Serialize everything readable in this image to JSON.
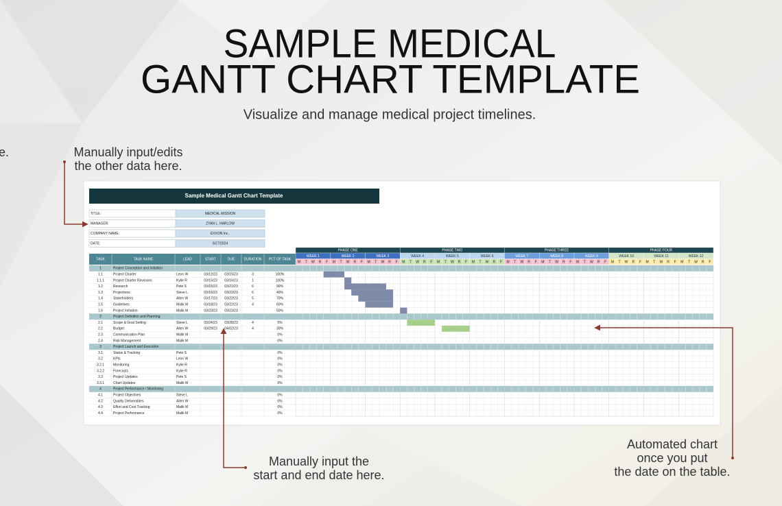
{
  "header": {
    "title_lines": [
      "SAMPLE MEDICAL",
      "GANTT CHART TEMPLATE"
    ],
    "subtitle": "Visualize and manage medical project timelines.",
    "edge_fragment": "e."
  },
  "annotations": [
    {
      "lines": [
        "Manually input/edits",
        "the other data here."
      ]
    },
    {
      "lines": [
        "Manually input the",
        "start and end date here."
      ]
    },
    {
      "lines": [
        "Automated chart",
        "once you put",
        "the date on the table."
      ]
    }
  ],
  "sheet": {
    "banner": "Sample Medical Gantt Chart Template",
    "info": [
      {
        "label": "TITLE:",
        "value": "MEDICAL MISSION"
      },
      {
        "label": "MANAGER:",
        "value": "ZYAN L. HARLOW"
      },
      {
        "label": "COMPANY NAME:",
        "value": "EXXON Inc.."
      },
      {
        "label": "DATE:",
        "value": "6/27/2024"
      }
    ],
    "columns": [
      "TASK",
      "TASK NAME",
      "LEAD",
      "START",
      "DUE",
      "DURATION",
      "PCT OF TASK"
    ],
    "timeline": {
      "weekday_letters": [
        "M",
        "T",
        "W",
        "R",
        "F"
      ],
      "phases": [
        {
          "name": "PHASE ONE",
          "weeks": [
            "WEEK 1",
            "WEEK 2",
            "WEEK 3"
          ],
          "week_color": "#3f6fbf",
          "day_color": "#f4c2cc"
        },
        {
          "name": "PHASE TWO",
          "weeks": [
            "WEEK 4",
            "WEEK 5",
            "WEEK 6"
          ],
          "week_color": "#bdd7ee",
          "day_color": "#c9e3b5"
        },
        {
          "name": "PHASE THREE",
          "weeks": [
            "WEEK 7",
            "WEEK 8",
            "WEEK 9"
          ],
          "week_color": "#6c9fdc",
          "day_color": "#f4c2cc"
        },
        {
          "name": "PHASE FOUR",
          "weeks": [
            "WEEK 10",
            "WEEK 11",
            "WEEK 12"
          ],
          "week_color": "#d5e6c8",
          "day_color": "#fbeaa8"
        }
      ]
    },
    "sections": [
      {
        "task": "1",
        "name": "Project Conception and Initiation",
        "bar_color": "#7f8aa8",
        "tasks": [
          {
            "task": "1.1",
            "name": "Project Charter",
            "lead": "Leon W",
            "start": "03/12/23",
            "due": "03/15/23",
            "duration": 3,
            "pct": "100%"
          },
          {
            "task": "1.1.1",
            "name": "Project Charter Revisions",
            "lead": "Kylie R",
            "start": "03/15/23",
            "due": "03/16/23",
            "duration": 1,
            "pct": "100%"
          },
          {
            "task": "1.2",
            "name": "Research",
            "lead": "Pete S",
            "start": "03/15/23",
            "due": "03/21/23",
            "duration": 6,
            "pct": "90%"
          },
          {
            "task": "1.3",
            "name": "Projections",
            "lead": "Steve L",
            "start": "03/16/23",
            "due": "03/22/23",
            "duration": 6,
            "pct": "40%"
          },
          {
            "task": "1.4",
            "name": "Stakeholders",
            "lead": "Allen W",
            "start": "03/17/23",
            "due": "03/22/23",
            "duration": 5,
            "pct": "70%"
          },
          {
            "task": "1.5",
            "name": "Guidelines",
            "lead": "Malik M",
            "start": "03/18/23",
            "due": "03/22/23",
            "duration": 4,
            "pct": "60%"
          },
          {
            "task": "1.6",
            "name": "Project Initiation",
            "lead": "Malik M",
            "start": "03/23/23",
            "due": "03/23/23",
            "pct": "50%"
          }
        ]
      },
      {
        "task": "2",
        "name": "Project Definition and Planning",
        "bar_color": "#a8d08d",
        "tasks": [
          {
            "task": "2.1",
            "name": "Scope & Goal Setting",
            "lead": "Steve L",
            "start": "03/24/23",
            "due": "03/28/23",
            "duration": 4,
            "pct": "5%"
          },
          {
            "task": "2.2",
            "name": "Budget",
            "lead": "Allen W",
            "start": "03/29/23",
            "due": "04/02/23",
            "duration": 4,
            "pct": "30%"
          },
          {
            "task": "2.3",
            "name": "Communication Plan",
            "lead": "Malik M",
            "pct": "0%"
          },
          {
            "task": "2.4",
            "name": "Risk Management",
            "lead": "Malik M",
            "pct": "0%"
          }
        ]
      },
      {
        "task": "3",
        "name": "Project Launch and Execution",
        "bar_color": "#7f8aa8",
        "tasks": [
          {
            "task": "3.1",
            "name": "Status & Tracking",
            "lead": "Pete S",
            "pct": "0%"
          },
          {
            "task": "3.2",
            "name": "KPIs",
            "lead": "Leon W",
            "pct": "0%"
          },
          {
            "task": "3.2.1",
            "name": "Monitoring",
            "lead": "Kylie R",
            "pct": "0%"
          },
          {
            "task": "3.2.2",
            "name": "Forecasts",
            "lead": "Kylie R",
            "pct": "0%"
          },
          {
            "task": "3.3",
            "name": "Project Updates",
            "lead": "Pete S",
            "pct": "0%"
          },
          {
            "task": "3.3.1",
            "name": "Chart Updates",
            "lead": "Malik M",
            "pct": "0%"
          }
        ]
      },
      {
        "task": "4",
        "name": "Project Performance / Monitoring",
        "bar_color": "#7f8aa8",
        "tasks": [
          {
            "task": "4.1",
            "name": "Project Objectives",
            "lead": "Steve L",
            "pct": "0%"
          },
          {
            "task": "4.2",
            "name": "Quality Deliverables",
            "lead": "Allen W",
            "pct": "0%"
          },
          {
            "task": "4.3",
            "name": "Effort and Cost Tracking",
            "lead": "Malik M",
            "pct": "0%"
          },
          {
            "task": "4.4",
            "name": "Project Performance",
            "lead": "Malik M",
            "pct": "0%"
          }
        ]
      }
    ]
  }
}
